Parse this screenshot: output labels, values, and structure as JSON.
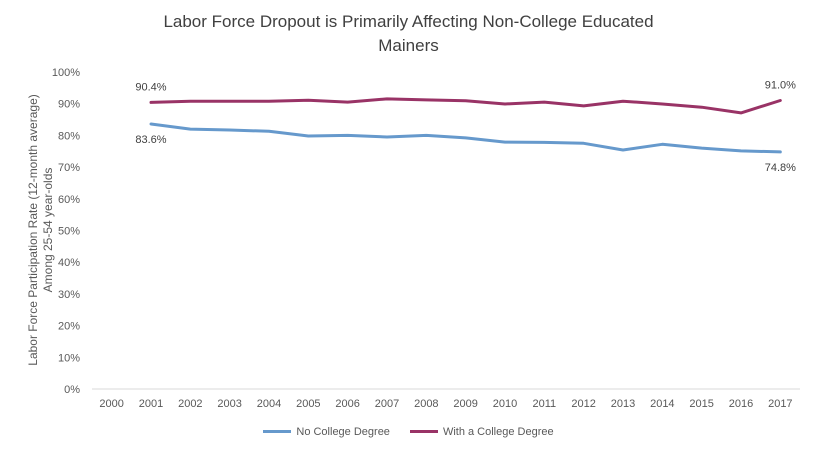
{
  "chart_data": {
    "type": "line",
    "title_line1": "Labor Force Dropout is Primarily Affecting Non-College Educated",
    "title_line2": "Mainers",
    "ylabel_line1": "Labor Force Participation Rate (12-month average)",
    "ylabel_line2": "Among  25-54 year-olds",
    "xlabel": "",
    "categories": [
      "2000",
      "2001",
      "2002",
      "2003",
      "2004",
      "2005",
      "2006",
      "2007",
      "2008",
      "2009",
      "2010",
      "2011",
      "2012",
      "2013",
      "2014",
      "2015",
      "2016",
      "2017"
    ],
    "ylim": [
      0,
      100
    ],
    "yticks": [
      0,
      10,
      20,
      30,
      40,
      50,
      60,
      70,
      80,
      90,
      100
    ],
    "ytick_labels": [
      "0%",
      "10%",
      "20%",
      "30%",
      "40%",
      "50%",
      "60%",
      "70%",
      "80%",
      "90%",
      "100%"
    ],
    "grid": false,
    "legend_position": "bottom",
    "series": [
      {
        "name": "No College Degree",
        "color": "#6699CC",
        "values": [
          null,
          83.6,
          82.0,
          81.7,
          81.3,
          79.8,
          80.0,
          79.5,
          80.0,
          79.2,
          77.9,
          77.8,
          77.5,
          75.4,
          77.2,
          76.0,
          75.1,
          74.8
        ]
      },
      {
        "name": "With a College Degree",
        "color": "#993366",
        "values": [
          null,
          90.4,
          90.8,
          90.8,
          90.8,
          91.1,
          90.5,
          91.5,
          91.2,
          90.9,
          89.9,
          90.5,
          89.3,
          90.8,
          89.9,
          88.9,
          87.1,
          91.0
        ]
      }
    ],
    "data_labels": [
      {
        "series": 0,
        "index": 1,
        "text": "83.6%",
        "pos": "below"
      },
      {
        "series": 0,
        "index": 17,
        "text": "74.8%",
        "pos": "below"
      },
      {
        "series": 1,
        "index": 1,
        "text": "90.4%",
        "pos": "above"
      },
      {
        "series": 1,
        "index": 17,
        "text": "91.0%",
        "pos": "above"
      }
    ]
  }
}
